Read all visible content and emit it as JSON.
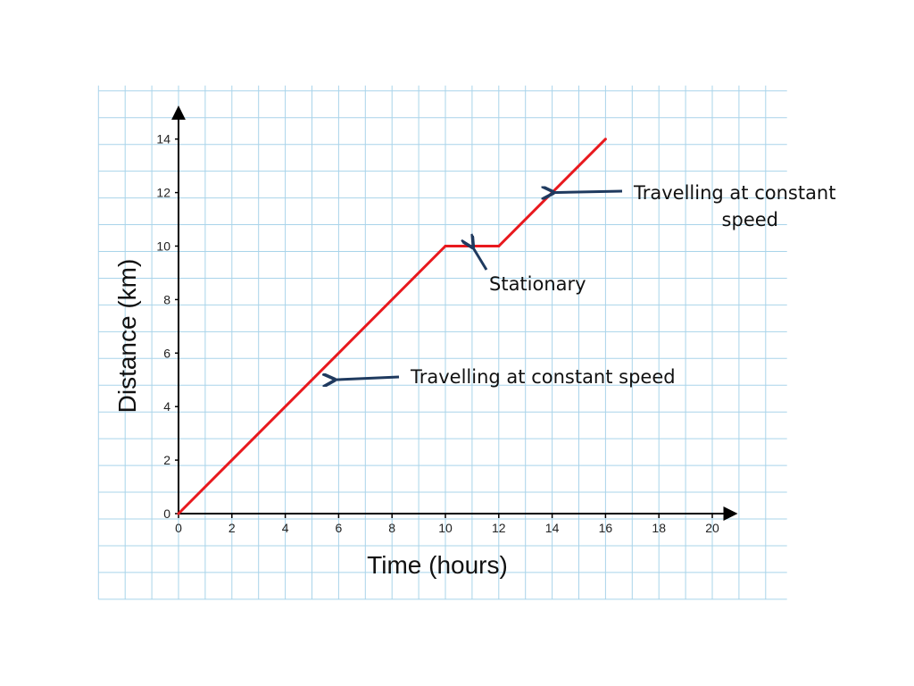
{
  "chart_data": {
    "type": "line",
    "xlabel": "Time (hours)",
    "ylabel": "Distance (km)",
    "xlim": [
      0,
      20
    ],
    "ylim": [
      0,
      14
    ],
    "x_ticks": [
      "0",
      "2",
      "4",
      "6",
      "8",
      "10",
      "12",
      "14",
      "16",
      "18",
      "20"
    ],
    "y_ticks": [
      "0",
      "2",
      "4",
      "6",
      "8",
      "10",
      "12",
      "14"
    ],
    "grid": true,
    "series": [
      {
        "x": [
          0,
          10,
          12,
          16
        ],
        "y": [
          0,
          10,
          10,
          14
        ]
      }
    ],
    "annotations": [
      {
        "text": "Travelling at constant speed",
        "points_to": [
          5.8,
          5
        ]
      },
      {
        "text": "Stationary",
        "points_to": [
          11,
          10
        ]
      },
      {
        "text_lines": [
          "Travelling at constant",
          "speed"
        ],
        "points_to": [
          14,
          12
        ]
      }
    ]
  },
  "colors": {
    "line": "#e8191e",
    "grid": "#a9d4ea",
    "arrow": "#1f3a5f",
    "axis": "#000000"
  }
}
